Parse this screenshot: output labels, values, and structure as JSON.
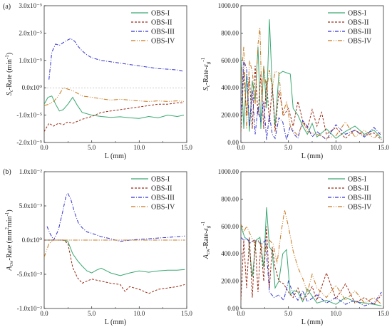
{
  "panel_labels": [
    "(a)",
    "(b)"
  ],
  "chart_data": [
    {
      "type": "line",
      "panel": "(a) left",
      "ylabel": "S_c-Rate (min⁻¹)",
      "xlabel": "L (mm)",
      "xlim": [
        0,
        15
      ],
      "ylim": [
        -2e-05,
        3e-05
      ],
      "x_ticks": [
        0.0,
        5.0,
        10.0,
        15.0
      ],
      "x_tick_labels": [
        "0.0",
        "5.0",
        "10.0",
        "15.0"
      ],
      "y_ticks": [
        -2e-05,
        -1e-05,
        0,
        1e-05,
        2e-05,
        3e-05
      ],
      "y_tick_labels": [
        "-2.0x10⁻⁵",
        "-1.0x10⁻⁵",
        "0.0x10⁰",
        "1.0x10⁻⁵",
        "2.0x10⁻⁵",
        "3.0x10⁻⁵"
      ],
      "legend_placement": "top-right",
      "series": [
        {
          "name": "OBS-I",
          "color": "#3aa872",
          "dash": "",
          "x": [
            0,
            0.4,
            0.8,
            1.2,
            1.6,
            2.0,
            2.5,
            3.0,
            3.5,
            4.0,
            5.0,
            6.0,
            7.0,
            8.0,
            9.0,
            10.0,
            11.0,
            12.0,
            13.0,
            14.0,
            14.7
          ],
          "y": [
            -6e-06,
            -3.5e-06,
            -3e-06,
            -6e-06,
            -8.5e-06,
            -8e-06,
            -6e-06,
            -3.5e-06,
            -6.5e-06,
            -9e-06,
            -1e-05,
            -1.05e-05,
            -1.08e-05,
            -1.06e-05,
            -1.1e-05,
            -1.12e-05,
            -1.05e-05,
            -1.1e-05,
            -1e-05,
            -1.05e-05,
            -1e-05
          ]
        },
        {
          "name": "OBS-II",
          "color": "#9b2a14",
          "dash": "3,2",
          "x": [
            0,
            0.5,
            1.0,
            1.5,
            2.0,
            2.5,
            3.0,
            4.0,
            5.0,
            6.0,
            7.0,
            8.0,
            9.0,
            10.0,
            11.0,
            12.0,
            13.0,
            14.0,
            14.7
          ],
          "y": [
            -1.6e-05,
            -1.3e-05,
            -1.4e-05,
            -1.3e-05,
            -1.35e-05,
            -1.25e-05,
            -1.3e-05,
            -1.15e-05,
            -1.05e-05,
            -9e-06,
            -8.5e-06,
            -8e-06,
            -7.5e-06,
            -7e-06,
            -6.5e-06,
            -6e-06,
            -6e-06,
            -5.5e-06,
            -5.5e-06
          ]
        },
        {
          "name": "OBS-III",
          "color": "#3333cc",
          "dash": "5,2,1,2",
          "x": [
            0.5,
            0.8,
            1.2,
            1.6,
            2.0,
            2.5,
            2.8,
            3.2,
            3.6,
            4.0,
            4.5,
            5.0,
            6.0,
            7.0,
            8.0,
            9.0,
            10.0,
            11.0,
            12.0,
            13.0,
            14.0,
            14.7
          ],
          "y": [
            3e-06,
            1.3e-05,
            1.6e-05,
            1.55e-05,
            1.65e-05,
            1.75e-05,
            1.8e-05,
            1.7e-05,
            1.5e-05,
            1.35e-05,
            1.2e-05,
            1.1e-05,
            1e-05,
            9.5e-06,
            9e-06,
            8.5e-06,
            8e-06,
            7.5e-06,
            7e-06,
            6.8e-06,
            6.5e-06,
            6e-06
          ]
        },
        {
          "name": "OBS-IV",
          "color": "#c8781e",
          "dash": "6,2,1,2,1,2",
          "x": [
            0,
            0.5,
            1.0,
            1.5,
            2.0,
            2.5,
            3.0,
            3.5,
            4.0,
            5.0,
            6.0,
            7.0,
            8.0,
            9.0,
            10.0,
            11.0,
            12.0,
            13.0,
            14.0,
            14.7
          ],
          "y": [
            -6.5e-06,
            -6e-06,
            -5e-06,
            -3e-06,
            0.0,
            -5e-07,
            -1e-06,
            -2e-06,
            -3e-06,
            -3.5e-06,
            -4e-06,
            -4.5e-06,
            -4.2e-06,
            -4.5e-06,
            -4.8e-06,
            -5e-06,
            -4.8e-06,
            -5e-06,
            -4.8e-06,
            -5e-06
          ]
        }
      ]
    },
    {
      "type": "line",
      "panel": "(a) right",
      "ylabel": "S_c-Rate-ε_g^(-1)",
      "xlabel": "L (mm)",
      "xlim": [
        0,
        15
      ],
      "ylim": [
        0,
        1000
      ],
      "x_ticks": [
        0.0,
        5.0,
        10.0,
        15.0
      ],
      "x_tick_labels": [
        "0.0",
        "5.0",
        "10.0",
        "15.0"
      ],
      "y_ticks": [
        0,
        200,
        400,
        600,
        800,
        1000
      ],
      "y_tick_labels": [
        "0.00",
        "200.00",
        "400.00",
        "600.00",
        "800.00",
        "1000.00"
      ],
      "legend_placement": "top-right",
      "series": [
        {
          "name": "OBS-I",
          "color": "#3aa872",
          "dash": "",
          "x": [
            0,
            0.3,
            0.6,
            0.9,
            1.2,
            1.5,
            1.8,
            2.1,
            2.4,
            2.7,
            3.0,
            3.3,
            3.6,
            4.0,
            4.4,
            4.8,
            5.2,
            5.5,
            6.0,
            6.5,
            7.0,
            7.5,
            8.0,
            9.0,
            10.0,
            11.0,
            12.0,
            13.0,
            14.0,
            14.8
          ],
          "y": [
            640,
            100,
            500,
            80,
            450,
            300,
            700,
            100,
            560,
            250,
            900,
            400,
            120,
            500,
            520,
            510,
            500,
            250,
            200,
            120,
            60,
            140,
            40,
            100,
            30,
            80,
            120,
            60,
            90,
            30
          ]
        },
        {
          "name": "OBS-II",
          "color": "#9b2a14",
          "dash": "3,2",
          "x": [
            0,
            0.3,
            0.6,
            0.9,
            1.2,
            1.5,
            1.8,
            2.1,
            2.4,
            2.7,
            3.0,
            3.3,
            3.6,
            4.0,
            4.5,
            5.0,
            5.5,
            6.0,
            6.5,
            7.0,
            7.5,
            8.0,
            8.5,
            9.0,
            10.0,
            11.0,
            12.0,
            13.0,
            14.0,
            14.8
          ],
          "y": [
            80,
            520,
            200,
            480,
            100,
            560,
            200,
            500,
            100,
            450,
            150,
            420,
            80,
            380,
            200,
            250,
            120,
            300,
            160,
            100,
            240,
            120,
            220,
            60,
            110,
            30,
            90,
            50,
            70,
            20
          ]
        },
        {
          "name": "OBS-III",
          "color": "#3333cc",
          "dash": "5,2,1,2",
          "x": [
            0,
            0.3,
            0.6,
            0.9,
            1.2,
            1.5,
            1.8,
            2.1,
            2.4,
            2.7,
            3.0,
            3.3,
            3.6,
            4.0,
            4.4,
            4.8,
            5.2,
            5.6,
            6.0,
            6.5,
            7.0,
            7.5,
            8.0,
            9.0,
            10.0,
            11.0,
            12.0,
            13.0,
            14.0,
            14.8
          ],
          "y": [
            200,
            600,
            540,
            120,
            380,
            60,
            260,
            150,
            300,
            20,
            200,
            60,
            30,
            180,
            150,
            20,
            120,
            60,
            30,
            160,
            120,
            40,
            80,
            20,
            130,
            60,
            90,
            40,
            110,
            50
          ]
        },
        {
          "name": "OBS-IV",
          "color": "#c8781e",
          "dash": "6,2,1,2,1,2",
          "x": [
            0,
            0.3,
            0.6,
            0.9,
            1.2,
            1.5,
            1.8,
            2.0,
            2.2,
            2.4,
            2.7,
            3.0,
            3.3,
            3.6,
            4.0,
            4.4,
            4.8,
            5.2,
            5.6,
            6.0,
            6.5,
            7.0,
            8.0,
            9.0,
            10.0,
            11.0,
            12.0,
            13.0,
            14.0,
            14.8
          ],
          "y": [
            450,
            700,
            100,
            600,
            520,
            280,
            720,
            840,
            300,
            560,
            380,
            530,
            400,
            520,
            510,
            200,
            300,
            120,
            80,
            50,
            150,
            80,
            60,
            30,
            50,
            150,
            40,
            90,
            30,
            80
          ]
        }
      ]
    },
    {
      "type": "line",
      "panel": "(b) left",
      "ylabel": "A_cw-Rate (mm²min⁻¹)",
      "xlabel": "L (mm)",
      "xlim": [
        0,
        15
      ],
      "ylim": [
        -0.01,
        0.01
      ],
      "x_ticks": [
        0.0,
        5.0,
        10.0,
        15.0
      ],
      "x_tick_labels": [
        "0.0",
        "5.0",
        "10.0",
        "15.0"
      ],
      "y_ticks": [
        -0.01,
        -0.005,
        0,
        0.005,
        0.01
      ],
      "y_tick_labels": [
        "-1.0x10⁻²",
        "-5.0x10⁻³",
        "0.0x10⁰",
        "5.0x10⁻³",
        "1.0x10⁻²"
      ],
      "legend_placement": "top-right",
      "series": [
        {
          "name": "OBS-I",
          "color": "#3aa872",
          "dash": "",
          "x": [
            0,
            0.5,
            1.0,
            1.5,
            2.0,
            2.5,
            3.0,
            3.5,
            4.0,
            4.5,
            5.0,
            5.5,
            6.0,
            7.0,
            8.0,
            9.0,
            10.0,
            11.0,
            12.0,
            13.0,
            14.0,
            14.8
          ],
          "y": [
            0,
            0,
            0,
            0,
            0,
            -0.0002,
            -0.002,
            -0.003,
            -0.0038,
            -0.0045,
            -0.0048,
            -0.0044,
            -0.0041,
            -0.0048,
            -0.0052,
            -0.0048,
            -0.0045,
            -0.0047,
            -0.0045,
            -0.0044,
            -0.0044,
            -0.0043
          ]
        },
        {
          "name": "OBS-II",
          "color": "#9b2a14",
          "dash": "3,2",
          "x": [
            0,
            0.5,
            1.0,
            1.5,
            2.0,
            2.5,
            3.0,
            3.5,
            4.0,
            4.5,
            5.0,
            6.0,
            7.0,
            8.0,
            8.5,
            9.0,
            10.0,
            11.0,
            12.0,
            13.0,
            14.0,
            14.8
          ],
          "y": [
            0,
            0,
            0,
            0,
            0,
            -0.0005,
            -0.004,
            -0.0055,
            -0.0063,
            -0.006,
            -0.0057,
            -0.006,
            -0.0063,
            -0.0065,
            -0.0075,
            -0.0068,
            -0.0072,
            -0.0078,
            -0.0072,
            -0.007,
            -0.0068,
            -0.0065
          ]
        },
        {
          "name": "OBS-III",
          "color": "#3333cc",
          "dash": "5,2,1,2",
          "x": [
            0.3,
            0.6,
            1.0,
            1.5,
            2.0,
            2.3,
            2.5,
            2.8,
            3.2,
            3.6,
            4.0,
            4.5,
            5.0,
            6.0,
            7.0,
            8.0,
            9.0,
            10.0,
            11.0,
            12.0,
            13.0,
            14.0,
            14.8
          ],
          "y": [
            0.002,
            0.001,
            0,
            0.0015,
            0.0045,
            0.0065,
            0.0068,
            0.006,
            0.004,
            0.0025,
            0.0018,
            0.0012,
            0.001,
            0.0005,
            0.0002,
            -0.0002,
            0,
            0.0001,
            0.0002,
            0.0003,
            0.0004,
            0.0005,
            0.0006
          ]
        },
        {
          "name": "OBS-IV",
          "color": "#c8781e",
          "dash": "6,2,1,2,1,2",
          "x": [
            0,
            0.5,
            1.0,
            2.0,
            3.0,
            4.0,
            5.0,
            6.0,
            7.0,
            8.0,
            9.0,
            10.0,
            11.0,
            12.0,
            13.0,
            14.0,
            14.8
          ],
          "y": [
            -0.0025,
            -0.0005,
            0,
            0,
            0,
            0,
            0,
            0,
            0,
            0,
            0,
            0,
            0,
            0,
            0,
            0,
            0
          ]
        }
      ]
    },
    {
      "type": "line",
      "panel": "(b) right",
      "ylabel": "A_cw-Rate-ε_g^(-1)",
      "xlabel": "L (mm)",
      "xlim": [
        0,
        15
      ],
      "ylim": [
        0,
        1000
      ],
      "x_ticks": [
        0.0,
        5.0,
        10.0,
        15.0
      ],
      "x_tick_labels": [
        "0.0",
        "5.0",
        "10.0",
        "15.0"
      ],
      "y_ticks": [
        0,
        200,
        400,
        600,
        800,
        1000
      ],
      "y_tick_labels": [
        "0.00",
        "200.00",
        "400.00",
        "600.00",
        "800.00",
        "1000.00"
      ],
      "legend_placement": "top-right",
      "series": [
        {
          "name": "OBS-I",
          "color": "#3aa872",
          "dash": "",
          "x": [
            0,
            0.4,
            0.8,
            1.2,
            1.6,
            2.0,
            2.4,
            2.7,
            3.0,
            3.3,
            3.6,
            4.0,
            4.4,
            4.8,
            5.2,
            5.6,
            6.0,
            6.5,
            7.0,
            8.0,
            9.0,
            10.0,
            11.0,
            12.0,
            13.0,
            14.0,
            14.8
          ],
          "y": [
            600,
            520,
            500,
            230,
            500,
            520,
            300,
            740,
            450,
            420,
            150,
            200,
            400,
            430,
            100,
            130,
            120,
            50,
            140,
            40,
            60,
            30,
            80,
            50,
            40,
            30,
            20
          ]
        },
        {
          "name": "OBS-II",
          "color": "#9b2a14",
          "dash": "3,2",
          "x": [
            0,
            0.3,
            0.6,
            0.9,
            1.2,
            1.5,
            1.8,
            2.1,
            2.4,
            2.7,
            3.0,
            3.3,
            3.6,
            4.0,
            4.5,
            5.0,
            5.5,
            6.0,
            6.5,
            7.0,
            7.5,
            8.0,
            9.0,
            10.0,
            11.0,
            12.0,
            13.0,
            14.0,
            14.8
          ],
          "y": [
            60,
            500,
            150,
            520,
            80,
            500,
            120,
            480,
            200,
            600,
            150,
            450,
            300,
            200,
            180,
            120,
            80,
            150,
            60,
            100,
            160,
            60,
            260,
            70,
            180,
            40,
            80,
            30,
            100
          ]
        },
        {
          "name": "OBS-III",
          "color": "#3333cc",
          "dash": "5,2,1,2",
          "x": [
            0,
            0.3,
            0.6,
            1.0,
            1.4,
            1.8,
            2.2,
            2.6,
            3.0,
            3.5,
            4.0,
            4.5,
            5.0,
            5.5,
            6.0,
            6.5,
            7.0,
            8.0,
            9.0,
            10.0,
            11.0,
            12.0,
            13.0,
            14.0,
            14.8
          ],
          "y": [
            520,
            500,
            510,
            480,
            500,
            490,
            470,
            500,
            120,
            80,
            100,
            60,
            200,
            110,
            60,
            130,
            50,
            100,
            40,
            80,
            30,
            60,
            20,
            40,
            120
          ]
        },
        {
          "name": "OBS-IV",
          "color": "#c8781e",
          "dash": "6,2,1,2,1,2",
          "x": [
            0,
            0.3,
            0.6,
            1.0,
            1.4,
            1.8,
            2.2,
            2.6,
            3.0,
            3.4,
            3.8,
            4.2,
            4.6,
            5.0,
            5.5,
            6.0,
            6.5,
            7.0,
            7.5,
            8.0,
            9.0,
            10.0,
            11.0,
            12.0,
            13.0,
            14.0,
            14.8
          ],
          "y": [
            620,
            560,
            600,
            540,
            480,
            500,
            450,
            430,
            500,
            470,
            330,
            540,
            720,
            600,
            420,
            300,
            220,
            120,
            250,
            150,
            80,
            170,
            60,
            130,
            40,
            80,
            30
          ]
        }
      ]
    }
  ]
}
